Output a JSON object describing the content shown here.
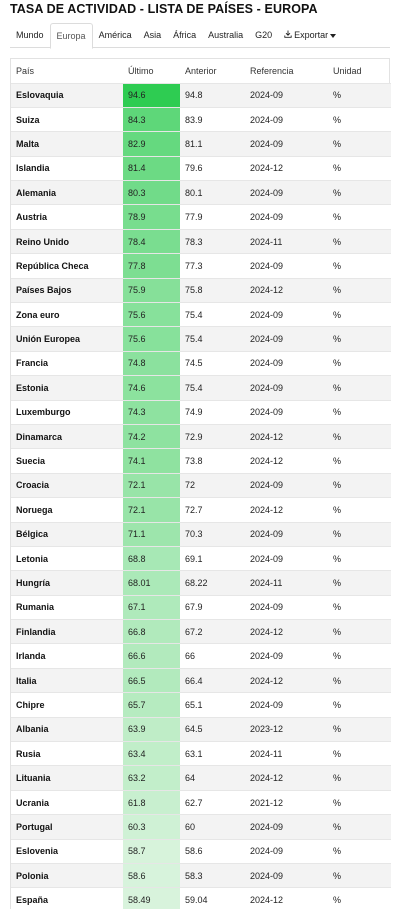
{
  "title": "TASA DE ACTIVIDAD - LISTA DE PAÍSES - EUROPA",
  "tabs": [
    {
      "label": "Mundo"
    },
    {
      "label": "Europa",
      "active": true
    },
    {
      "label": "América"
    },
    {
      "label": "Asia"
    },
    {
      "label": "África"
    },
    {
      "label": "Australia"
    },
    {
      "label": "G20"
    }
  ],
  "export": {
    "label": "Exportar",
    "icon": "download-icon"
  },
  "columns": [
    "País",
    "Último",
    "Anterior",
    "Referencia",
    "Unidad"
  ],
  "colors": {
    "heat_high": "#2ecc52",
    "heat_low": "#d8f3dc"
  },
  "rows": [
    {
      "country": "Eslovaquia",
      "last": "94.6",
      "prev": "94.8",
      "ref": "2024-09",
      "unit": "%"
    },
    {
      "country": "Suiza",
      "last": "84.3",
      "prev": "83.9",
      "ref": "2024-09",
      "unit": "%"
    },
    {
      "country": "Malta",
      "last": "82.9",
      "prev": "81.1",
      "ref": "2024-09",
      "unit": "%"
    },
    {
      "country": "Islandia",
      "last": "81.4",
      "prev": "79.6",
      "ref": "2024-12",
      "unit": "%"
    },
    {
      "country": "Alemania",
      "last": "80.3",
      "prev": "80.1",
      "ref": "2024-09",
      "unit": "%"
    },
    {
      "country": "Austria",
      "last": "78.9",
      "prev": "77.9",
      "ref": "2024-09",
      "unit": "%"
    },
    {
      "country": "Reino Unido",
      "last": "78.4",
      "prev": "78.3",
      "ref": "2024-11",
      "unit": "%"
    },
    {
      "country": "República Checa",
      "last": "77.8",
      "prev": "77.3",
      "ref": "2024-09",
      "unit": "%"
    },
    {
      "country": "Países Bajos",
      "last": "75.9",
      "prev": "75.8",
      "ref": "2024-12",
      "unit": "%"
    },
    {
      "country": "Zona euro",
      "last": "75.6",
      "prev": "75.4",
      "ref": "2024-09",
      "unit": "%"
    },
    {
      "country": "Unión Europea",
      "last": "75.6",
      "prev": "75.4",
      "ref": "2024-09",
      "unit": "%"
    },
    {
      "country": "Francia",
      "last": "74.8",
      "prev": "74.5",
      "ref": "2024-09",
      "unit": "%"
    },
    {
      "country": "Estonia",
      "last": "74.6",
      "prev": "75.4",
      "ref": "2024-09",
      "unit": "%"
    },
    {
      "country": "Luxemburgo",
      "last": "74.3",
      "prev": "74.9",
      "ref": "2024-09",
      "unit": "%"
    },
    {
      "country": "Dinamarca",
      "last": "74.2",
      "prev": "72.9",
      "ref": "2024-12",
      "unit": "%"
    },
    {
      "country": "Suecia",
      "last": "74.1",
      "prev": "73.8",
      "ref": "2024-12",
      "unit": "%"
    },
    {
      "country": "Croacia",
      "last": "72.1",
      "prev": "72",
      "ref": "2024-09",
      "unit": "%"
    },
    {
      "country": "Noruega",
      "last": "72.1",
      "prev": "72.7",
      "ref": "2024-12",
      "unit": "%"
    },
    {
      "country": "Bélgica",
      "last": "71.1",
      "prev": "70.3",
      "ref": "2024-09",
      "unit": "%"
    },
    {
      "country": "Letonia",
      "last": "68.8",
      "prev": "69.1",
      "ref": "2024-09",
      "unit": "%"
    },
    {
      "country": "Hungría",
      "last": "68.01",
      "prev": "68.22",
      "ref": "2024-11",
      "unit": "%"
    },
    {
      "country": "Rumania",
      "last": "67.1",
      "prev": "67.9",
      "ref": "2024-09",
      "unit": "%"
    },
    {
      "country": "Finlandia",
      "last": "66.8",
      "prev": "67.2",
      "ref": "2024-12",
      "unit": "%"
    },
    {
      "country": "Irlanda",
      "last": "66.6",
      "prev": "66",
      "ref": "2024-09",
      "unit": "%"
    },
    {
      "country": "Italia",
      "last": "66.5",
      "prev": "66.4",
      "ref": "2024-12",
      "unit": "%"
    },
    {
      "country": "Chipre",
      "last": "65.7",
      "prev": "65.1",
      "ref": "2024-09",
      "unit": "%"
    },
    {
      "country": "Albania",
      "last": "63.9",
      "prev": "64.5",
      "ref": "2023-12",
      "unit": "%"
    },
    {
      "country": "Rusia",
      "last": "63.4",
      "prev": "63.1",
      "ref": "2024-11",
      "unit": "%"
    },
    {
      "country": "Lituania",
      "last": "63.2",
      "prev": "64",
      "ref": "2024-12",
      "unit": "%"
    },
    {
      "country": "Ucrania",
      "last": "61.8",
      "prev": "62.7",
      "ref": "2021-12",
      "unit": "%"
    },
    {
      "country": "Portugal",
      "last": "60.3",
      "prev": "60",
      "ref": "2024-09",
      "unit": "%"
    },
    {
      "country": "Eslovenia",
      "last": "58.7",
      "prev": "58.6",
      "ref": "2024-09",
      "unit": "%"
    },
    {
      "country": "Polonia",
      "last": "58.6",
      "prev": "58.3",
      "ref": "2024-09",
      "unit": "%"
    },
    {
      "country": "España",
      "last": "58.49",
      "prev": "59.04",
      "ref": "2024-12",
      "unit": "%"
    }
  ]
}
